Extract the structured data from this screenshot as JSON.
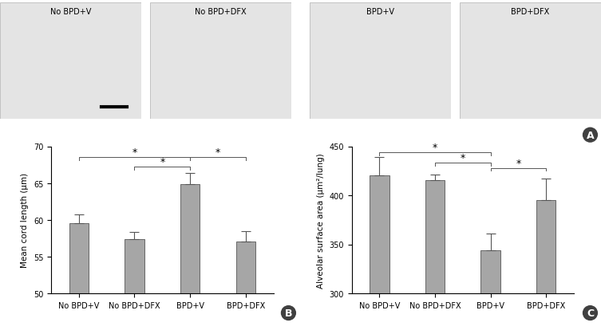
{
  "micrographs": {
    "panel_label": "A",
    "labels": [
      "No BPD+V",
      "No BPD+DFX",
      "BPD+V",
      "BPD+DFX"
    ]
  },
  "chart_data": [
    {
      "type": "bar",
      "panel_label": "B",
      "y_label": "Mean cord length (μm)",
      "categories": [
        "No BPD+V",
        "No BPD+DFX",
        "BPD+V",
        "BPD+DFX"
      ],
      "values": [
        59.5,
        57.4,
        64.9,
        57.0
      ],
      "errors": [
        1.2,
        0.9,
        1.5,
        1.5
      ],
      "color": "#a6a6a6",
      "ylim": [
        50,
        70
      ],
      "yticks": [
        50,
        55,
        60,
        65,
        70
      ],
      "grid": false,
      "annotations": [
        {
          "text": "*",
          "from": "No BPD+V",
          "to": "BPD+V",
          "y": 68.5
        },
        {
          "text": "*",
          "from": "No BPD+DFX",
          "to": "BPD+V",
          "y": 67.2
        },
        {
          "text": "*",
          "from": "BPD+V",
          "to": "BPD+DFX",
          "y": 68.5
        }
      ]
    },
    {
      "type": "bar",
      "panel_label": "C",
      "y_label": "Alveolar surface area (μm²/lung)",
      "categories": [
        "No BPD+V",
        "No BPD+DFX",
        "BPD+V",
        "BPD+DFX"
      ],
      "values": [
        420,
        415.5,
        344,
        395
      ],
      "errors": [
        19,
        6,
        17,
        22
      ],
      "color": "#a6a6a6",
      "ylim": [
        300,
        450
      ],
      "yticks": [
        300,
        350,
        400,
        450
      ],
      "grid": false,
      "annotations": [
        {
          "text": "*",
          "from": "No BPD+V",
          "to": "BPD+V",
          "y": 444
        },
        {
          "text": "*",
          "from": "No BPD+DFX",
          "to": "BPD+V",
          "y": 433
        },
        {
          "text": "*",
          "from": "BPD+V",
          "to": "BPD+DFX",
          "y": 428
        }
      ]
    }
  ]
}
